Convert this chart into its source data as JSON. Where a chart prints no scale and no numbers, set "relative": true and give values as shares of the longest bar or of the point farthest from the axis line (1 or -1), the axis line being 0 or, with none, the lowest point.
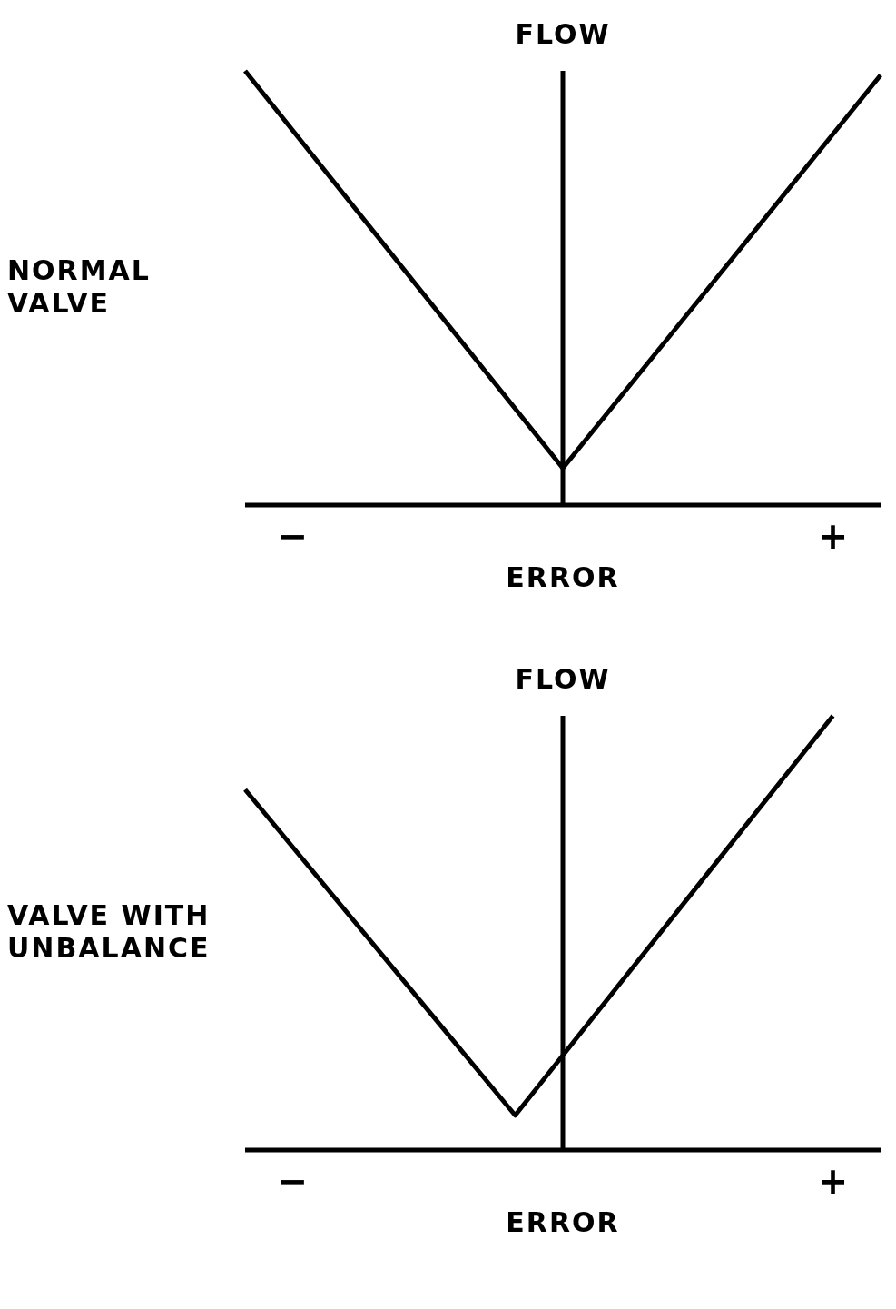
{
  "chart_data": [
    {
      "type": "line",
      "title": "NORMAL VALVE",
      "xlabel": "ERROR",
      "ylabel": "FLOW",
      "relative": true,
      "tick_labels": "x",
      "categories": [
        null,
        null,
        null,
        "−",
        null,
        null,
        null,
        null,
        null,
        null,
        null,
        null,
        null,
        null,
        null,
        null,
        null,
        null,
        null,
        null,
        null,
        null,
        null,
        null,
        null,
        null,
        null,
        null,
        null,
        null,
        null,
        null,
        null,
        null,
        null,
        null,
        null,
        "+",
        null,
        null,
        null
      ],
      "series": [
        {
          "color": "#000000",
          "values": [
            1,
            null,
            null,
            null,
            null,
            null,
            null,
            null,
            null,
            null,
            null,
            null,
            null,
            null,
            null,
            null,
            null,
            null,
            null,
            null,
            0.085,
            null,
            null,
            null,
            null,
            null,
            null,
            null,
            null,
            null,
            null,
            null,
            null,
            null,
            null,
            null,
            null,
            null,
            null,
            null,
            0.99
          ]
        }
      ]
    },
    {
      "type": "line",
      "title": "VALVE WITH UNBALANCE",
      "xlabel": "ERROR",
      "ylabel": "FLOW",
      "relative": true,
      "tick_labels": "x",
      "categories": [
        null,
        null,
        null,
        "−",
        null,
        null,
        null,
        null,
        null,
        null,
        null,
        null,
        null,
        null,
        null,
        null,
        null,
        null,
        null,
        null,
        null,
        null,
        null,
        null,
        null,
        null,
        null,
        null,
        null,
        null,
        null,
        null,
        null,
        null,
        null,
        null,
        null,
        "+",
        null,
        null,
        null
      ],
      "series": [
        {
          "color": "#000000",
          "values": [
            0.83,
            null,
            null,
            null,
            null,
            null,
            null,
            null,
            null,
            null,
            null,
            null,
            null,
            null,
            null,
            null,
            null,
            0.08,
            null,
            null,
            null,
            null,
            null,
            null,
            null,
            null,
            null,
            null,
            null,
            null,
            null,
            null,
            null,
            null,
            null,
            null,
            null,
            1,
            null,
            null,
            null
          ]
        }
      ]
    }
  ]
}
